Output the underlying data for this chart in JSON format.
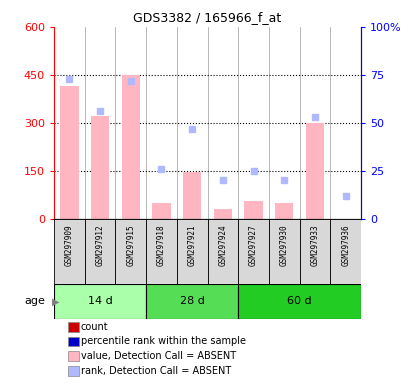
{
  "title": "GDS3382 / 165966_f_at",
  "samples": [
    "GSM297909",
    "GSM297912",
    "GSM297915",
    "GSM297918",
    "GSM297921",
    "GSM297924",
    "GSM297927",
    "GSM297930",
    "GSM297933",
    "GSM297936"
  ],
  "groups": [
    {
      "label": "14 d",
      "indices": [
        0,
        1,
        2
      ],
      "color": "#aaffaa"
    },
    {
      "label": "28 d",
      "indices": [
        3,
        4,
        5
      ],
      "color": "#55dd55"
    },
    {
      "label": "60 d",
      "indices": [
        6,
        7,
        8,
        9
      ],
      "color": "#22cc22"
    }
  ],
  "bar_values": [
    415,
    320,
    450,
    50,
    145,
    30,
    55,
    50,
    300,
    0
  ],
  "rank_dots_pct": [
    73,
    56,
    72,
    26,
    47,
    20,
    25,
    20,
    53,
    12
  ],
  "ylim_left": [
    0,
    600
  ],
  "ylim_right": [
    0,
    100
  ],
  "yticks_left": [
    0,
    150,
    300,
    450,
    600
  ],
  "yticks_right": [
    0,
    25,
    50,
    75,
    100
  ],
  "bar_color": "#ffb6c1",
  "rank_color": "#b0b8ff",
  "grid_dotted_at": [
    150,
    300,
    450
  ],
  "age_label": "age",
  "legend_items": [
    {
      "label": "count",
      "color": "#cc0000"
    },
    {
      "label": "percentile rank within the sample",
      "color": "#0000cc"
    },
    {
      "label": "value, Detection Call = ABSENT",
      "color": "#ffb6c1"
    },
    {
      "label": "rank, Detection Call = ABSENT",
      "color": "#b0b8ff"
    }
  ]
}
